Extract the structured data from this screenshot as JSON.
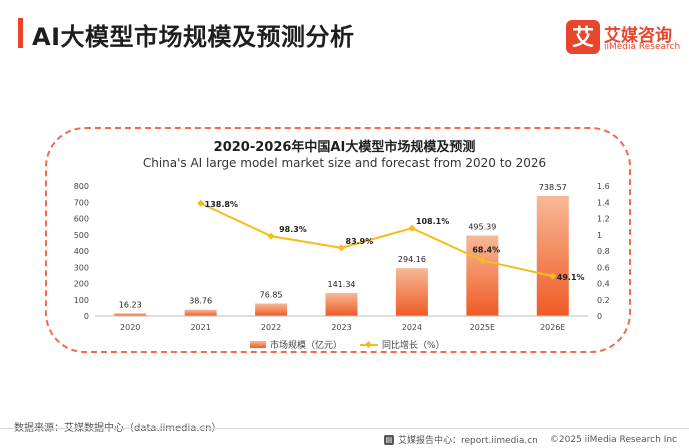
{
  "header": {
    "title": "AI大模型市场规模及预测分析",
    "logo_mark": "艾",
    "logo_cn": "艾媒咨询",
    "logo_en": "iiMedia Research",
    "accent_color": "#e8462a"
  },
  "chart_data": {
    "type": "bar+line",
    "title": "2020-2026年中国AI大模型市场规模及预测",
    "subtitle": "China's AI large model market size and forecast from 2020 to 2026",
    "categories": [
      "2020",
      "2021",
      "2022",
      "2023",
      "2024",
      "2025E",
      "2026E"
    ],
    "series": [
      {
        "name": "市场规模（亿元）",
        "kind": "bar",
        "axis": "left",
        "values": [
          16.23,
          38.76,
          76.85,
          141.34,
          294.16,
          495.39,
          738.57
        ],
        "labels": [
          "16.23",
          "38.76",
          "76.85",
          "141.34",
          "294.16",
          "495.39",
          "738.57"
        ],
        "color_top": "#f7b996",
        "color_bottom": "#ef5a25"
      },
      {
        "name": "同比增长（%）",
        "kind": "line",
        "axis": "right",
        "values": [
          null,
          1.388,
          0.983,
          0.839,
          1.081,
          0.684,
          0.491
        ],
        "labels": [
          "",
          "138.8%",
          "98.3%",
          "83.9%",
          "108.1%",
          "68.4%",
          "49.1%"
        ],
        "color": "#f5bc1c"
      }
    ],
    "left_axis": {
      "ylim": [
        0,
        800
      ],
      "ticks": [
        "0",
        "100",
        "200",
        "300",
        "400",
        "500",
        "600",
        "700",
        "800"
      ]
    },
    "right_axis": {
      "ylim": [
        0,
        1.6
      ],
      "ticks": [
        "0",
        "0.2",
        "0.4",
        "0.6",
        "0.8",
        "1",
        "1.2",
        "1.4",
        "1.6"
      ]
    },
    "legend_position": "bottom"
  },
  "legend": {
    "bar_label": "市场规模（亿元）",
    "line_label": "同比增长（%）"
  },
  "footer": {
    "source": "数据来源：艾媒数据中心（data.iimedia.cn）",
    "report_center": "艾媒报告中心：report.iimedia.cn",
    "copyright": "©2025  iiMedia Research Inc"
  }
}
